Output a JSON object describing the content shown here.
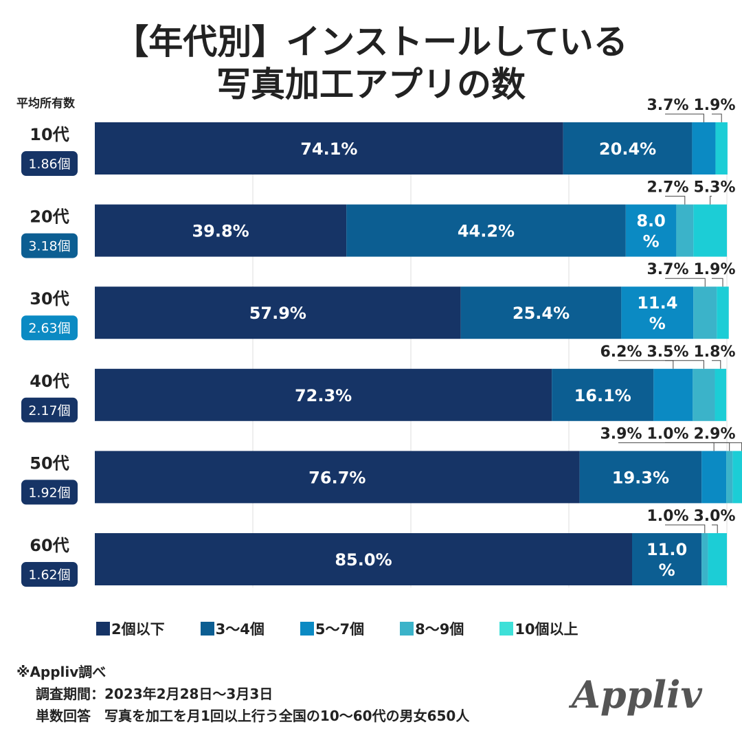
{
  "title": {
    "line1": "【年代別】インストールしている",
    "line2": "写真加工アプリの数"
  },
  "avg_header": "平均所有数",
  "chart_data": {
    "type": "bar",
    "orientation": "horizontal",
    "stacked": true,
    "normalized": true,
    "xlim": [
      0,
      100
    ],
    "grid": true,
    "categories": [
      "10代",
      "20代",
      "30代",
      "40代",
      "50代",
      "60代"
    ],
    "averages": [
      "1.86個",
      "3.18個",
      "2.63個",
      "2.17個",
      "1.92個",
      "1.62個"
    ],
    "series": [
      {
        "name": "2個以下",
        "color": "#163466",
        "values": [
          74.1,
          39.8,
          57.9,
          72.3,
          76.7,
          85.0
        ],
        "labels": [
          "74.1%",
          "39.8%",
          "57.9%",
          "72.3%",
          "76.7%",
          "85.0%"
        ]
      },
      {
        "name": "3〜4個",
        "color": "#0c5e92",
        "values": [
          20.4,
          44.2,
          25.4,
          16.1,
          19.3,
          11.0
        ],
        "labels": [
          "20.4%",
          "44.2%",
          "25.4%",
          "16.1%",
          "19.3%",
          "11.0%"
        ]
      },
      {
        "name": "5〜7個",
        "color": "#0b8ac3",
        "values": [
          3.7,
          8.0,
          11.4,
          6.2,
          3.9,
          0.0
        ],
        "labels": [
          "3.7%",
          "8.0%",
          "11.4%",
          "6.2%",
          "3.9%",
          ""
        ]
      },
      {
        "name": "8〜9個",
        "color": "#3bb3c9",
        "values": [
          0.0,
          2.7,
          3.7,
          3.5,
          1.0,
          1.0
        ],
        "labels": [
          "",
          "2.7%",
          "3.7%",
          "3.5%",
          "1.0%",
          "1.0%"
        ]
      },
      {
        "name": "10個以上",
        "color": "#1ccdd6",
        "values": [
          1.9,
          5.3,
          1.9,
          1.8,
          2.9,
          3.0
        ],
        "labels": [
          "1.9%",
          "5.3%",
          "1.9%",
          "1.8%",
          "2.9%",
          "3.0%"
        ]
      }
    ]
  },
  "legend": [
    {
      "label": "2個以下",
      "color": "#163466"
    },
    {
      "label": "3〜4個",
      "color": "#0c5e92"
    },
    {
      "label": "5〜7個",
      "color": "#0b8ac3"
    },
    {
      "label": "8〜9個",
      "color": "#3bb3c9"
    },
    {
      "label": "10個以上",
      "color": "#3ee0d8"
    }
  ],
  "source": {
    "line1": "※Appliv調べ",
    "line2": "調査期間：2023年2月28日〜3月3日",
    "line3": "単数回答　写真を加工を月1回以上行う全国の10〜60代の男女650人"
  },
  "logo_text": "Appliv",
  "colors": {
    "badge_dark": "#163466",
    "badge_mid": "#0c5e92",
    "badge_light": "#0b8ac3",
    "logo": "#555555"
  }
}
